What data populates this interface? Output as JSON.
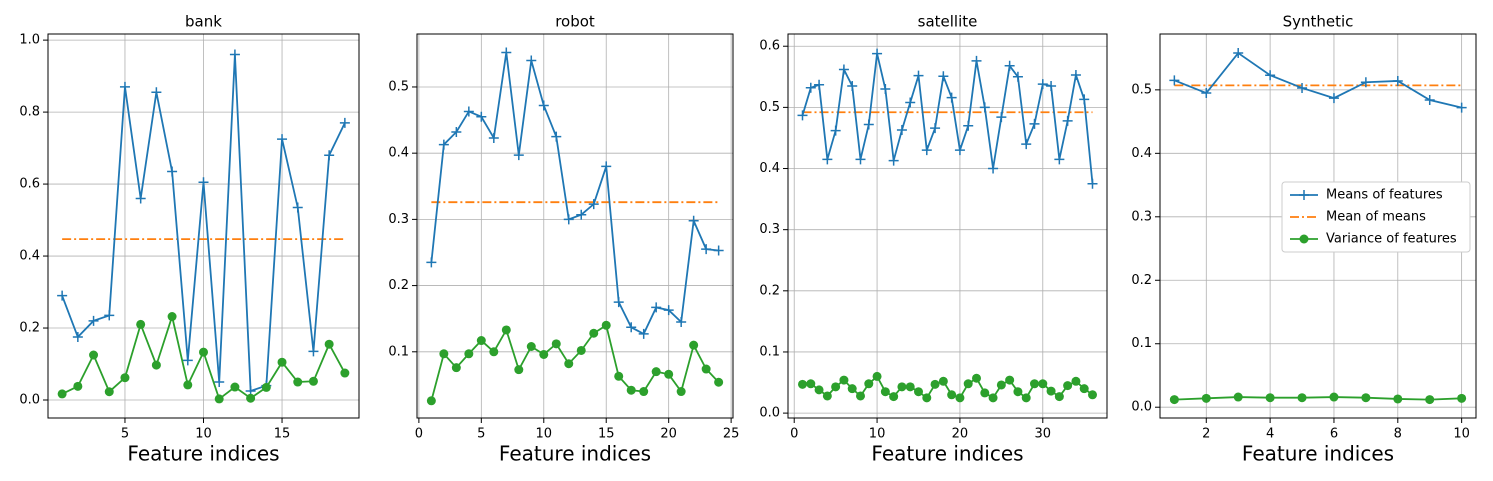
{
  "chart_data": [
    {
      "type": "line",
      "title": "bank",
      "xlabel": "Feature indices",
      "x": [
        1,
        2,
        3,
        4,
        5,
        6,
        7,
        8,
        9,
        10,
        11,
        12,
        13,
        14,
        15,
        16,
        17,
        18,
        19
      ],
      "xlim": [
        0.1,
        19.9
      ],
      "xticks": [
        5,
        10,
        15
      ],
      "ylim": [
        -0.05,
        1.017
      ],
      "yticks": [
        {
          "value": 0,
          "label": "0.0"
        },
        0.2,
        0.4,
        0.6,
        0.8,
        {
          "value": 1,
          "label": "1.0"
        }
      ],
      "grid": true,
      "series": [
        {
          "color": "#1f77b4",
          "marker": "plus",
          "values": [
            0.29,
            0.175,
            0.22,
            0.235,
            0.87,
            0.56,
            0.855,
            0.635,
            0.11,
            0.605,
            0.05,
            0.96,
            0.025,
            0.04,
            0.725,
            0.535,
            0.135,
            0.68,
            0.77
          ]
        },
        {
          "color": "#2ca02c",
          "marker": "circle",
          "values": [
            0.017,
            0.038,
            0.125,
            0.023,
            0.062,
            0.21,
            0.097,
            0.232,
            0.042,
            0.133,
            0.003,
            0.036,
            0.005,
            0.035,
            0.105,
            0.05,
            0.052,
            0.155,
            0.075
          ]
        }
      ],
      "mean_line": {
        "color": "#ff7f0e",
        "value": 0.447
      }
    },
    {
      "type": "line",
      "title": "robot",
      "xlabel": "Feature indices",
      "x": [
        1,
        2,
        3,
        4,
        5,
        6,
        7,
        8,
        9,
        10,
        11,
        12,
        13,
        14,
        15,
        16,
        17,
        18,
        19,
        20,
        21,
        22,
        23,
        24
      ],
      "xlim": [
        -0.15,
        25.15
      ],
      "xticks": [
        0,
        5,
        10,
        15,
        20,
        25
      ],
      "ylim": [
        0.0,
        0.58
      ],
      "yticks": [
        0.1,
        0.2,
        0.3,
        0.4,
        0.5
      ],
      "grid": true,
      "series": [
        {
          "color": "#1f77b4",
          "marker": "plus",
          "values": [
            0.235,
            0.413,
            0.432,
            0.463,
            0.455,
            0.423,
            0.552,
            0.397,
            0.54,
            0.472,
            0.425,
            0.3,
            0.307,
            0.323,
            0.38,
            0.175,
            0.137,
            0.127,
            0.167,
            0.163,
            0.145,
            0.298,
            0.255,
            0.253
          ]
        },
        {
          "color": "#2ca02c",
          "marker": "circle",
          "values": [
            0.026,
            0.097,
            0.076,
            0.097,
            0.117,
            0.1,
            0.133,
            0.073,
            0.108,
            0.096,
            0.112,
            0.082,
            0.102,
            0.128,
            0.14,
            0.063,
            0.042,
            0.04,
            0.07,
            0.066,
            0.04,
            0.11,
            0.074,
            0.054
          ]
        }
      ],
      "mean_line": {
        "color": "#ff7f0e",
        "value": 0.326
      }
    },
    {
      "type": "line",
      "title": "satellite",
      "xlabel": "Feature indices",
      "x": [
        1,
        2,
        3,
        4,
        5,
        6,
        7,
        8,
        9,
        10,
        11,
        12,
        13,
        14,
        15,
        16,
        17,
        18,
        19,
        20,
        21,
        22,
        23,
        24,
        25,
        26,
        27,
        28,
        29,
        30,
        31,
        32,
        33,
        34,
        35,
        36
      ],
      "xlim": [
        -0.75,
        37.75
      ],
      "xticks": [
        0,
        10,
        20,
        30
      ],
      "ylim": [
        -0.008,
        0.62
      ],
      "yticks": [
        {
          "value": 0,
          "label": "0.0"
        },
        0.1,
        0.2,
        0.3,
        0.4,
        0.5,
        0.6
      ],
      "grid": true,
      "series": [
        {
          "color": "#1f77b4",
          "marker": "plus",
          "values": [
            0.487,
            0.532,
            0.537,
            0.415,
            0.462,
            0.562,
            0.535,
            0.415,
            0.472,
            0.588,
            0.53,
            0.413,
            0.463,
            0.508,
            0.552,
            0.43,
            0.466,
            0.551,
            0.516,
            0.43,
            0.47,
            0.576,
            0.5,
            0.4,
            0.484,
            0.568,
            0.55,
            0.44,
            0.473,
            0.538,
            0.535,
            0.415,
            0.478,
            0.553,
            0.513,
            0.375
          ]
        },
        {
          "color": "#2ca02c",
          "marker": "circle",
          "values": [
            0.047,
            0.048,
            0.038,
            0.028,
            0.043,
            0.054,
            0.04,
            0.028,
            0.048,
            0.06,
            0.035,
            0.027,
            0.043,
            0.043,
            0.035,
            0.025,
            0.047,
            0.052,
            0.03,
            0.025,
            0.048,
            0.057,
            0.033,
            0.025,
            0.046,
            0.054,
            0.035,
            0.025,
            0.048,
            0.048,
            0.036,
            0.027,
            0.045,
            0.052,
            0.04,
            0.03
          ]
        }
      ],
      "mean_line": {
        "color": "#ff7f0e",
        "value": 0.492
      }
    },
    {
      "type": "line",
      "title": "Synthetic",
      "xlabel": "Feature indices",
      "x": [
        1,
        2,
        3,
        4,
        5,
        6,
        7,
        8,
        9,
        10
      ],
      "xlim": [
        0.55,
        10.45
      ],
      "xticks": [
        2,
        4,
        6,
        8,
        10
      ],
      "ylim": [
        -0.017,
        0.588
      ],
      "yticks": [
        {
          "value": 0,
          "label": "0.0"
        },
        0.1,
        0.2,
        0.3,
        0.4,
        0.5
      ],
      "grid": true,
      "legend": "center right",
      "series": [
        {
          "name": "Means of features",
          "color": "#1f77b4",
          "marker": "plus",
          "values": [
            0.515,
            0.495,
            0.558,
            0.523,
            0.503,
            0.487,
            0.512,
            0.514,
            0.484,
            0.472
          ]
        },
        {
          "name": "Variance of features",
          "color": "#2ca02c",
          "marker": "circle",
          "values": [
            0.012,
            0.014,
            0.016,
            0.015,
            0.015,
            0.016,
            0.015,
            0.013,
            0.012,
            0.014
          ]
        }
      ],
      "mean_line": {
        "name": "Mean of means",
        "color": "#ff7f0e",
        "value": 0.507
      }
    }
  ]
}
